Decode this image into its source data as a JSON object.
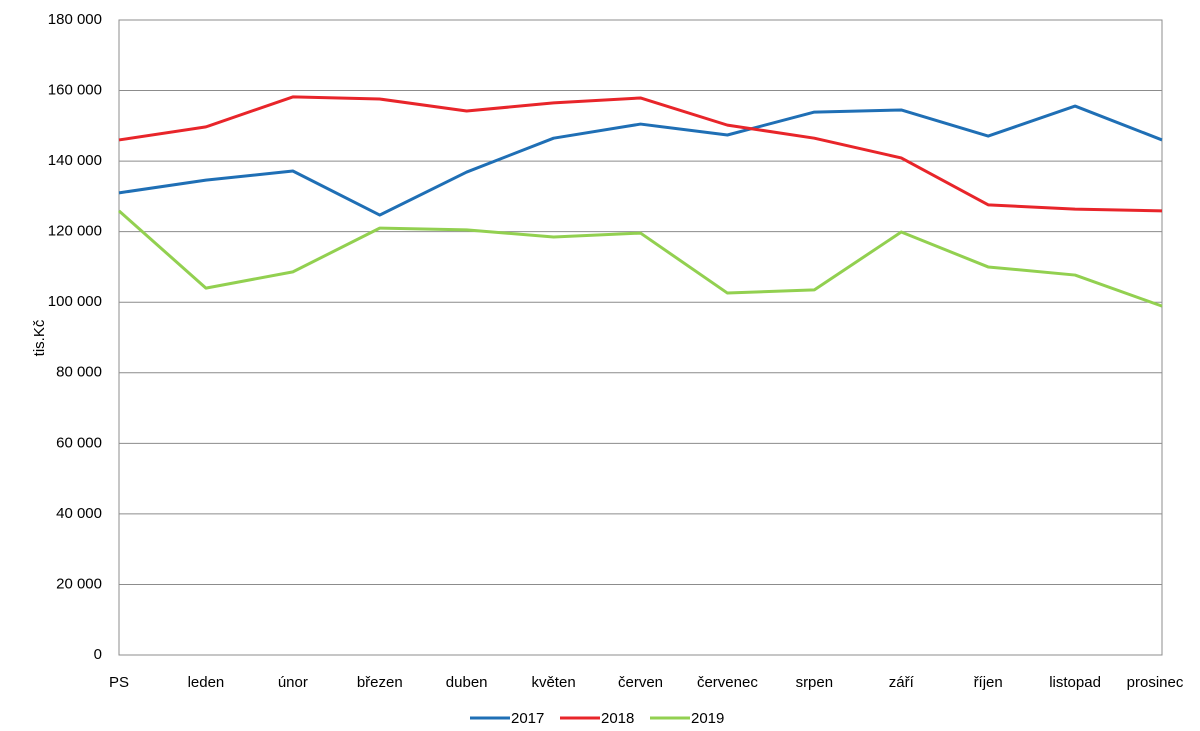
{
  "chart_data": {
    "type": "line",
    "y_label": "tis.Kč",
    "categories": [
      "PS",
      "leden",
      "únor",
      "březen",
      "duben",
      "květen",
      "červen",
      "červenec",
      "srpen",
      "září",
      "říjen",
      "listopad",
      "prosinec"
    ],
    "series": [
      {
        "name": "2017",
        "color": "#1f6fb5",
        "values": [
          131000,
          134600,
          137200,
          124700,
          136900,
          146500,
          150500,
          147400,
          153900,
          154500,
          147100,
          155600,
          146000
        ]
      },
      {
        "name": "2018",
        "color": "#e8252a",
        "values": [
          146000,
          149700,
          158200,
          157600,
          154200,
          156500,
          157900,
          150200,
          146500,
          140900,
          127600,
          126400,
          125900
        ]
      },
      {
        "name": "2019",
        "color": "#92d050",
        "values": [
          125900,
          104000,
          108600,
          121000,
          120500,
          118500,
          119600,
          102600,
          103500,
          119900,
          110000,
          107700,
          98900
        ]
      }
    ],
    "ylim": [
      0,
      180000
    ],
    "yticks": [
      0,
      {
        "value": 20000,
        "label": "20 000"
      },
      {
        "value": 40000,
        "label": "40 000"
      },
      {
        "value": 60000,
        "label": "60 000"
      },
      {
        "value": 80000,
        "label": "80 000"
      },
      {
        "value": 100000,
        "label": "100 000"
      },
      {
        "value": 120000,
        "label": "120 000"
      },
      {
        "value": 140000,
        "label": "140 000"
      },
      {
        "value": 160000,
        "label": "160 000"
      },
      {
        "value": 180000,
        "label": "180 000"
      }
    ],
    "grid": true,
    "legend": "bottom"
  }
}
